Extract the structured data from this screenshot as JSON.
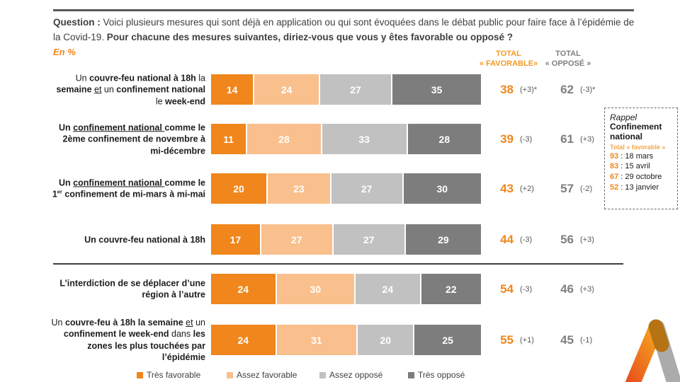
{
  "colors": {
    "tres_favorable": "#F0861C",
    "assez_favorable": "#F9C08D",
    "assez_oppose": "#C1C1C2",
    "tres_oppose": "#7D7D7D",
    "accent_orange": "#F0861C",
    "gray_text": "#7F7F7F"
  },
  "question": {
    "prefix": "Question :",
    "body": " Voici plusieurs mesures qui sont déjà en application ou qui sont évoquées dans le débat public pour faire face à l’épidémie de la Covid-19. ",
    "bold_tail": "Pour chacune des mesures suivantes, diriez-vous que vous y êtes favorable ou opposé ?"
  },
  "unit_label": "En %",
  "columns": {
    "favorable": {
      "line1": "TOTAL",
      "line2": "« FAVORABLE»"
    },
    "oppose": {
      "line1": "TOTAL",
      "line2": "« OPPOSÉ »"
    }
  },
  "legend": [
    {
      "label": "Très favorable",
      "color": "#F0861C"
    },
    {
      "label": "Assez favorable",
      "color": "#F9C08D"
    },
    {
      "label": "Assez opposé",
      "color": "#C1C1C2"
    },
    {
      "label": "Très opposé",
      "color": "#7D7D7D"
    }
  ],
  "rappel_box": {
    "title_italic": "Rappel",
    "title_bold": "Confinement national",
    "subtitle": "Total « favorable »",
    "entries": [
      {
        "value": "93",
        "date": "18 mars"
      },
      {
        "value": "83",
        "date": "15 avril"
      },
      {
        "value": "67",
        "date": "29 octobre"
      },
      {
        "value": "52",
        "date": "13 janvier"
      }
    ]
  },
  "rows": [
    {
      "label_segments": [
        {
          "t": "Un "
        },
        {
          "t": "couvre-feu national à 18h",
          "b": true
        },
        {
          "t": " la "
        },
        {
          "t": "semaine",
          "b": true
        },
        {
          "t": " "
        },
        {
          "t": "et",
          "u": true
        },
        {
          "t": " un "
        },
        {
          "t": "confinement national",
          "b": true
        },
        {
          "t": " le "
        },
        {
          "t": "week-end",
          "b": true
        }
      ]
    },
    {
      "label_segments": [
        {
          "t": "Un ",
          "b": true
        },
        {
          "t": "confinement national ",
          "b": true,
          "u": true
        },
        {
          "t": "comme le 2ème confinement de novembre à mi-décembre",
          "b": true
        }
      ]
    },
    {
      "label_segments": [
        {
          "t": "Un ",
          "b": true
        },
        {
          "t": "confinement national ",
          "b": true,
          "u": true
        },
        {
          "t": "comme le 1",
          "b": true
        },
        {
          "t": "er",
          "b": true,
          "sup": true
        },
        {
          "t": " confinement de mi-mars à mi-mai",
          "b": true
        }
      ]
    },
    {
      "label_segments": [
        {
          "t": "Un couvre-feu national à 18h",
          "b": true
        }
      ]
    },
    {
      "label_segments": [
        {
          "t": "L’interdiction de se déplacer d’une région à l’autre",
          "b": true
        }
      ]
    },
    {
      "label_segments": [
        {
          "t": "Un "
        },
        {
          "t": "couvre-feu à 18h la semaine",
          "b": true
        },
        {
          "t": " "
        },
        {
          "t": "et",
          "u": true
        },
        {
          "t": " un "
        },
        {
          "t": "confinement le week-end",
          "b": true
        },
        {
          "t": " dans "
        },
        {
          "t": "les zones les plus touchées par l’épidémie",
          "b": true
        }
      ]
    }
  ],
  "chart_data": {
    "type": "bar",
    "stacked": true,
    "orientation": "horizontal",
    "xlim": [
      0,
      100
    ],
    "categories": [
      "Un couvre-feu national à 18h la semaine et un confinement national le week-end",
      "Un confinement national comme le 2ème confinement de novembre à mi-décembre",
      "Un confinement national comme le 1er confinement de mi-mars à mi-mai",
      "Un couvre-feu national à 18h",
      "L’interdiction de se déplacer d’une région à l’autre",
      "Un couvre-feu à 18h la semaine et un confinement le week-end dans les zones les plus touchées par l’épidémie"
    ],
    "series": [
      {
        "name": "Très favorable",
        "values": [
          14,
          11,
          20,
          17,
          24,
          24
        ]
      },
      {
        "name": "Assez favorable",
        "values": [
          24,
          28,
          23,
          27,
          30,
          31
        ]
      },
      {
        "name": "Assez opposé",
        "values": [
          27,
          33,
          27,
          27,
          24,
          20
        ]
      },
      {
        "name": "Très opposé",
        "values": [
          35,
          28,
          30,
          29,
          22,
          25
        ]
      }
    ],
    "totals": {
      "favorable": [
        38,
        39,
        43,
        44,
        54,
        55
      ],
      "favorable_change": [
        "(+3)*",
        "(-3)",
        "(+2)",
        "(-3)",
        "(-3)",
        "(+1)"
      ],
      "oppose": [
        62,
        61,
        57,
        56,
        46,
        45
      ],
      "oppose_change": [
        "(-3)*",
        "(+3)",
        "(-2)",
        "(+3)",
        "(+3)",
        "(-1)"
      ]
    },
    "legend_position": "bottom"
  }
}
